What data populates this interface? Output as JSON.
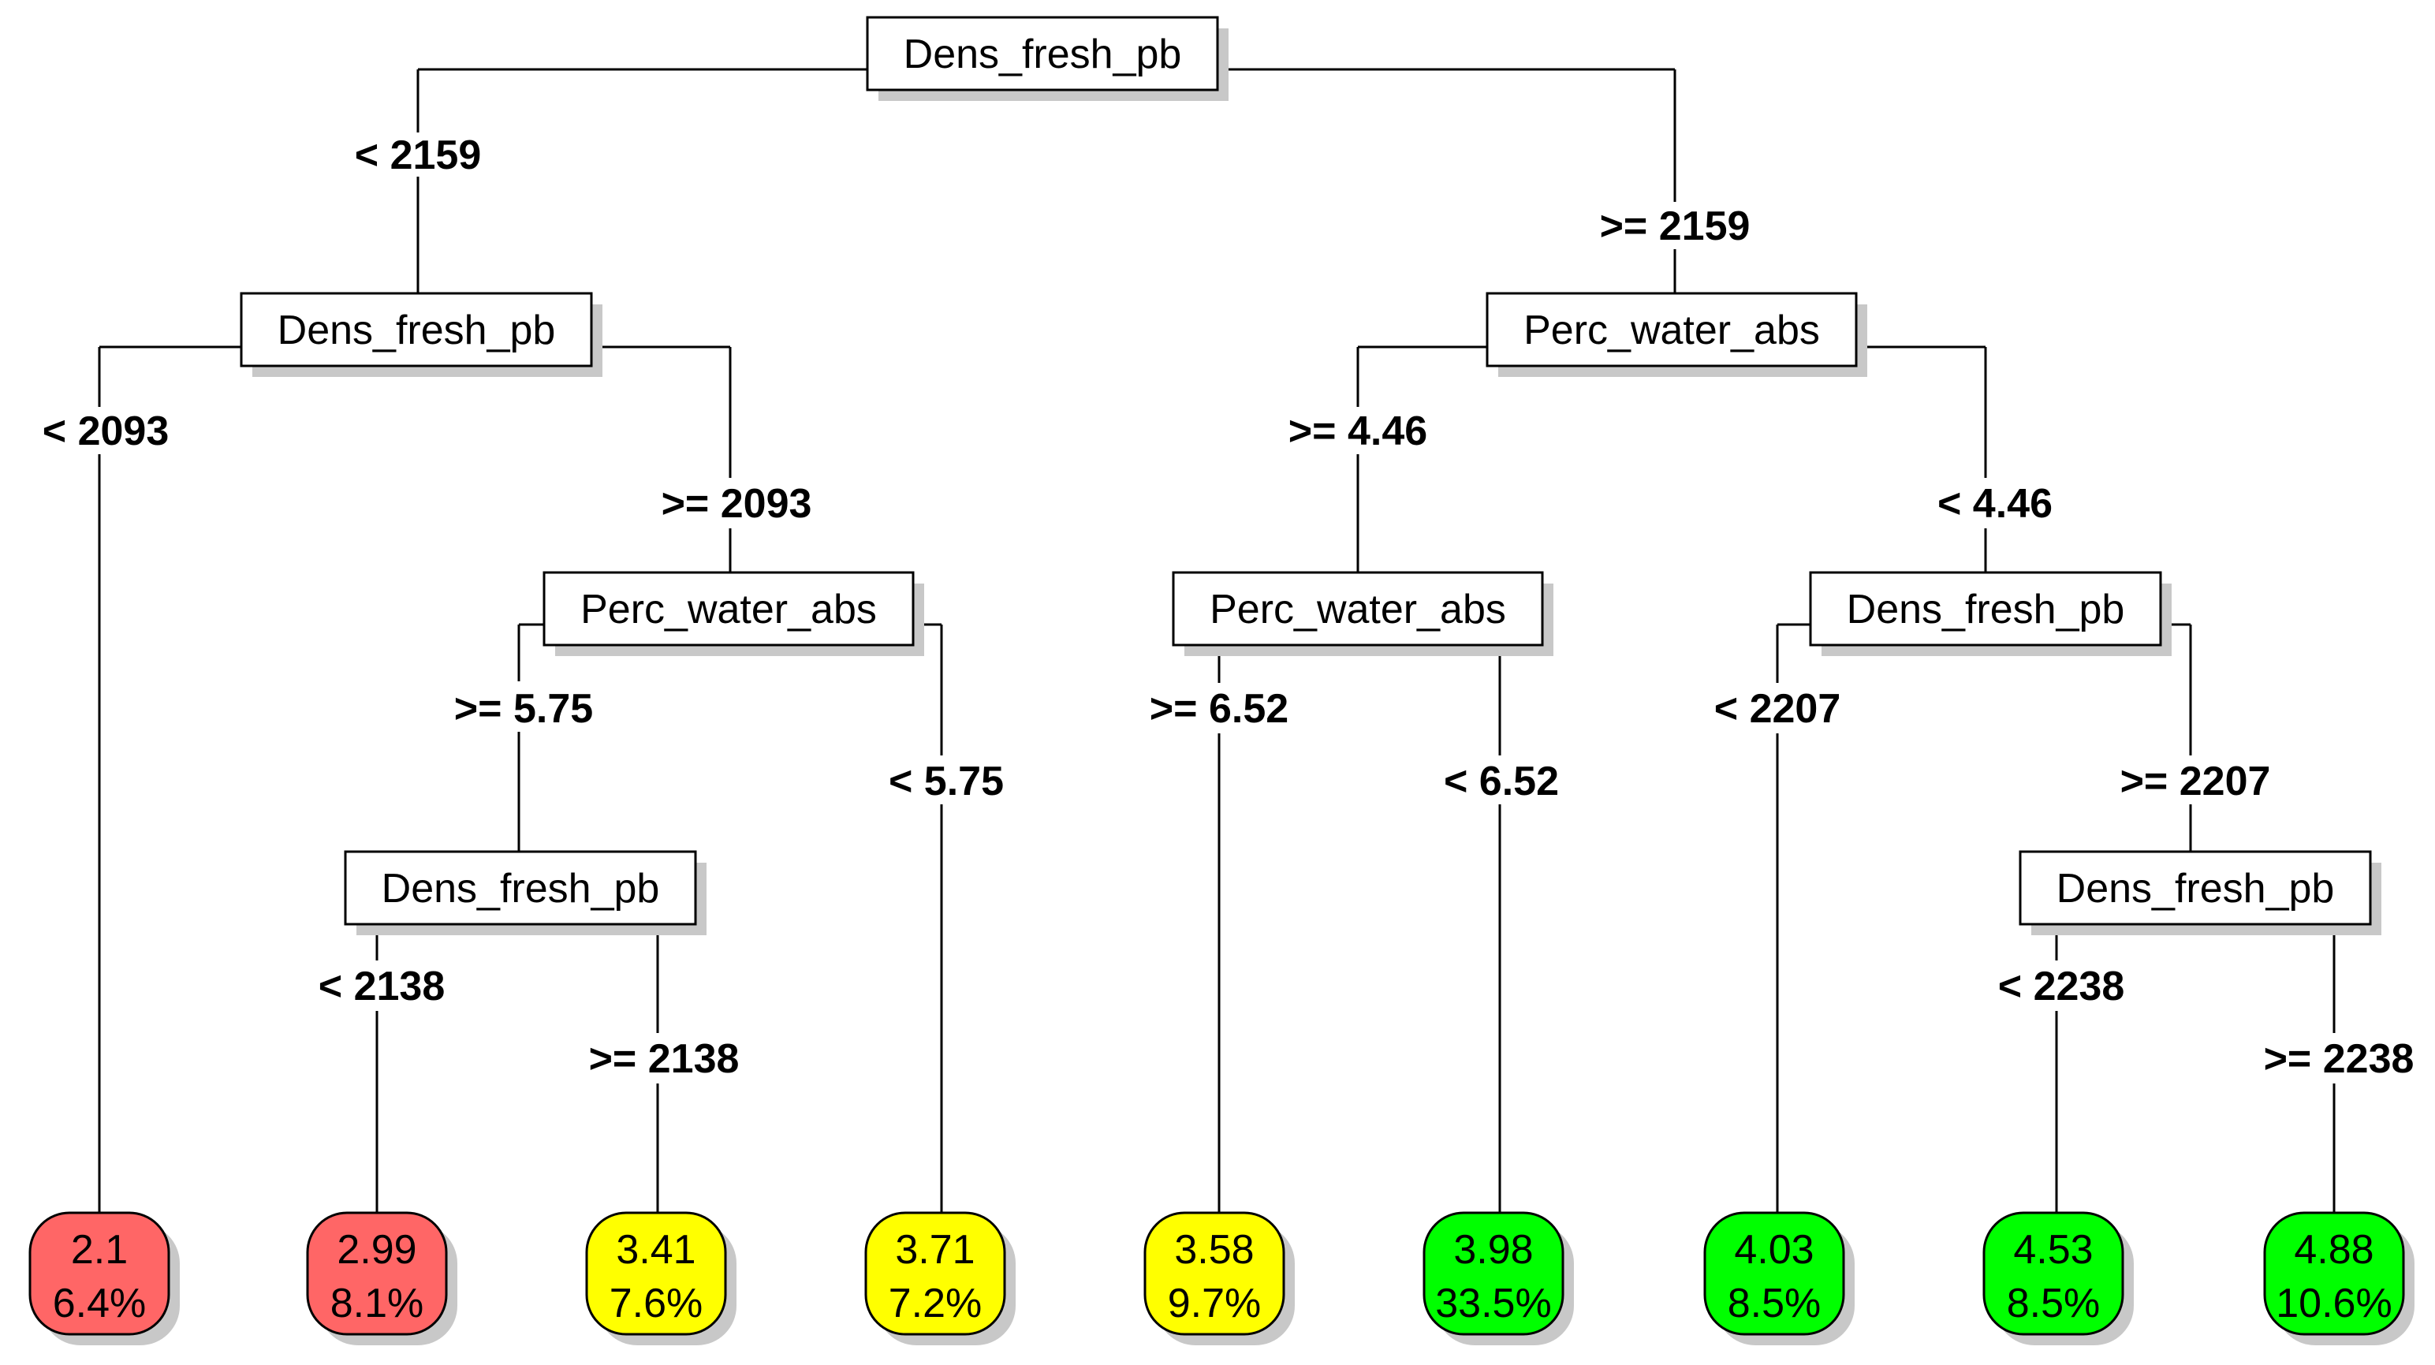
{
  "tree": {
    "colors": {
      "red": "#ff6666",
      "yellow": "#ffff00",
      "green": "#00ff00",
      "line": "#000000",
      "shadow": "#c8c8c8"
    },
    "nodes": [
      {
        "id": "n1",
        "label": "Dens_fresh_pb"
      },
      {
        "id": "n2",
        "label": "Dens_fresh_pb"
      },
      {
        "id": "n3",
        "label": "Perc_water_abs"
      },
      {
        "id": "n4",
        "label": "Dens_fresh_pb"
      },
      {
        "id": "n5",
        "label": "Perc_water_abs"
      },
      {
        "id": "n6",
        "label": "Perc_water_abs"
      },
      {
        "id": "n7",
        "label": "Dens_fresh_pb"
      },
      {
        "id": "n8",
        "label": "Dens_fresh_pb"
      }
    ],
    "edges": [
      {
        "id": "e1",
        "label": "< 2159"
      },
      {
        "id": "e2",
        "label": ">= 2159"
      },
      {
        "id": "e3",
        "label": "< 2093"
      },
      {
        "id": "e4",
        "label": ">= 2093"
      },
      {
        "id": "e5",
        "label": ">= 5.75"
      },
      {
        "id": "e6",
        "label": "< 5.75"
      },
      {
        "id": "e7",
        "label": "< 2138"
      },
      {
        "id": "e8",
        "label": ">= 2138"
      },
      {
        "id": "e9",
        "label": ">= 4.46"
      },
      {
        "id": "e10",
        "label": "< 4.46"
      },
      {
        "id": "e11",
        "label": ">= 6.52"
      },
      {
        "id": "e12",
        "label": "< 6.52"
      },
      {
        "id": "e13",
        "label": "< 2207"
      },
      {
        "id": "e14",
        "label": ">= 2207"
      },
      {
        "id": "e15",
        "label": "< 2238"
      },
      {
        "id": "e16",
        "label": ">= 2238"
      }
    ],
    "leaves": [
      {
        "id": "l1",
        "value": "2.1",
        "percent": "6.4%",
        "color": "red"
      },
      {
        "id": "l2",
        "value": "2.99",
        "percent": "8.1%",
        "color": "red"
      },
      {
        "id": "l3",
        "value": "3.41",
        "percent": "7.6%",
        "color": "yellow"
      },
      {
        "id": "l4",
        "value": "3.71",
        "percent": "7.2%",
        "color": "yellow"
      },
      {
        "id": "l5",
        "value": "3.58",
        "percent": "9.7%",
        "color": "yellow"
      },
      {
        "id": "l6",
        "value": "3.98",
        "percent": "33.5%",
        "color": "green"
      },
      {
        "id": "l7",
        "value": "4.03",
        "percent": "8.5%",
        "color": "green"
      },
      {
        "id": "l8",
        "value": "4.53",
        "percent": "8.5%",
        "color": "green"
      },
      {
        "id": "l9",
        "value": "4.88",
        "percent": "10.6%",
        "color": "green"
      }
    ]
  }
}
